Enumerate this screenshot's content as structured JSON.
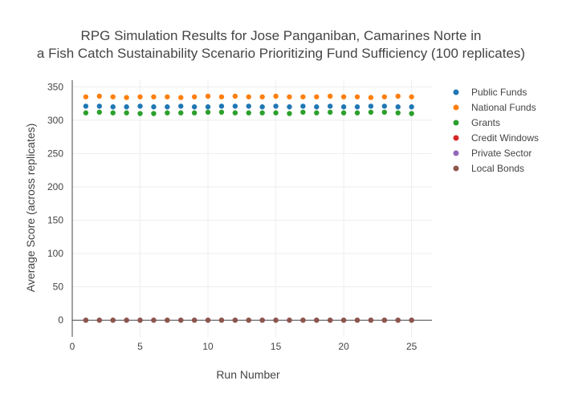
{
  "chart_data": {
    "type": "scatter",
    "title_line1": "RPG Simulation Results for Jose Panganiban, Camarines Norte in",
    "title_line2": "a Fish Catch Sustainability Scenario Prioritizing Fund Sufficiency (100 replicates)",
    "xlabel": "Run Number",
    "ylabel": "Average Score (across replicates)",
    "xlim": [
      0,
      26.5
    ],
    "ylim": [
      -25,
      360
    ],
    "x_ticks": [
      0,
      5,
      10,
      15,
      20,
      25
    ],
    "y_ticks": [
      0,
      50,
      100,
      150,
      200,
      250,
      300,
      350
    ],
    "grid": true,
    "legend_position": "top-right",
    "x": [
      1,
      2,
      3,
      4,
      5,
      6,
      7,
      8,
      9,
      10,
      11,
      12,
      13,
      14,
      15,
      16,
      17,
      18,
      19,
      20,
      21,
      22,
      23,
      24,
      25
    ],
    "series": [
      {
        "name": "Public Funds",
        "color": "#1f77b4",
        "values": [
          321,
          321,
          320,
          320,
          321,
          320,
          320,
          321,
          320,
          320,
          321,
          321,
          321,
          320,
          321,
          320,
          321,
          320,
          321,
          320,
          320,
          321,
          321,
          320,
          320
        ]
      },
      {
        "name": "National Funds",
        "color": "#ff7f0e",
        "values": [
          335,
          336,
          335,
          334,
          335,
          335,
          335,
          334,
          335,
          336,
          335,
          336,
          335,
          335,
          336,
          335,
          335,
          335,
          336,
          335,
          335,
          334,
          335,
          336,
          335
        ]
      },
      {
        "name": "Grants",
        "color": "#2ca02c",
        "values": [
          311,
          312,
          311,
          311,
          310,
          310,
          311,
          311,
          311,
          312,
          312,
          311,
          311,
          311,
          311,
          310,
          312,
          311,
          312,
          311,
          311,
          312,
          312,
          311,
          310
        ]
      },
      {
        "name": "Credit Windows",
        "color": "#d62728",
        "values": [
          0,
          0,
          0,
          0,
          0,
          0,
          0,
          0,
          0,
          0,
          0,
          0,
          0,
          0,
          0,
          0,
          0,
          0,
          0,
          0,
          0,
          0,
          0,
          0,
          0
        ]
      },
      {
        "name": "Private Sector",
        "color": "#9467bd",
        "values": [
          0,
          0,
          0,
          0,
          0,
          0,
          0,
          0,
          0,
          0,
          0,
          0,
          0,
          0,
          0,
          0,
          0,
          0,
          0,
          0,
          0,
          0,
          0,
          0,
          0
        ]
      },
      {
        "name": "Local Bonds",
        "color": "#8c564b",
        "values": [
          0,
          0,
          0,
          0,
          0,
          0,
          0,
          0,
          0,
          0,
          0,
          0,
          0,
          0,
          0,
          0,
          0,
          0,
          0,
          0,
          0,
          0,
          0,
          0,
          0
        ]
      }
    ]
  }
}
